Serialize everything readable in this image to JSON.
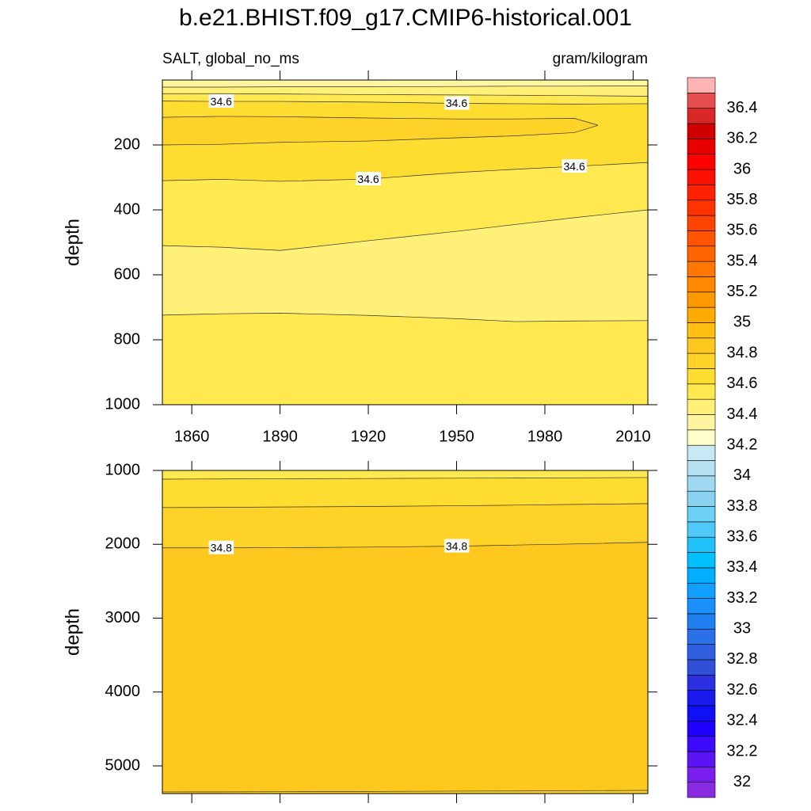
{
  "title": "b.e21.BHIST.f09_g17.CMIP6-historical.001",
  "left_string": "SALT, global_no_ms",
  "right_string": "gram/kilogram",
  "chart_data": [
    {
      "type": "contour",
      "ylabel": "depth",
      "xlim": [
        1850,
        2015
      ],
      "ylim": [
        0,
        1000
      ],
      "y_reversed": true,
      "xticks": [
        1860,
        1890,
        1920,
        1950,
        1980,
        2010
      ],
      "xtick_labels": true,
      "yticks": [
        200,
        400,
        600,
        800,
        1000
      ],
      "top_fill": 34.3,
      "contours": [
        {
          "level": 34.4,
          "below": 34.4,
          "x": [
            1850,
            1870,
            1890,
            1920,
            1950,
            1970,
            1990,
            2015
          ],
          "depth": [
            22,
            22,
            21,
            21,
            20,
            19,
            19,
            18
          ]
        },
        {
          "level": 34.5,
          "below": 34.5,
          "x": [
            1850,
            1870,
            1890,
            1920,
            1950,
            1970,
            1990,
            2015
          ],
          "depth": [
            42,
            42,
            43,
            45,
            46,
            47,
            48,
            50
          ]
        },
        {
          "level": 34.6,
          "below": 34.6,
          "x": [
            1850,
            1870,
            1890,
            1920,
            1950,
            1970,
            1990,
            2015
          ],
          "depth": [
            65,
            66,
            66,
            68,
            72,
            73,
            74,
            73
          ]
        },
        {
          "level": 34.7,
          "below": 34.7,
          "x": [
            1850,
            1870,
            1890,
            1920,
            1950,
            1970,
            1990,
            1998
          ],
          "depth": [
            115,
            112,
            113,
            117,
            120,
            120,
            118,
            139
          ]
        },
        {
          "level": 34.7,
          "below": 34.6,
          "x": [
            1850,
            1870,
            1890,
            1920,
            1950,
            1970,
            1990,
            1998
          ],
          "depth": [
            200,
            198,
            192,
            188,
            178,
            172,
            162,
            140
          ]
        },
        {
          "level": 34.6,
          "below": 34.5,
          "x": [
            1850,
            1870,
            1890,
            1920,
            1950,
            1970,
            1990,
            2015
          ],
          "depth": [
            310,
            306,
            312,
            305,
            285,
            275,
            266,
            254
          ]
        },
        {
          "level": 34.5,
          "below": 34.4,
          "x": [
            1850,
            1870,
            1890,
            1920,
            1950,
            1970,
            1990,
            2015
          ],
          "depth": [
            510,
            515,
            525,
            495,
            466,
            445,
            424,
            400
          ]
        },
        {
          "level": 34.5,
          "below": 34.5,
          "x": [
            1850,
            1870,
            1890,
            1920,
            1950,
            1970,
            1990,
            2015
          ],
          "depth": [
            724,
            720,
            718,
            725,
            735,
            744,
            742,
            741
          ]
        }
      ]
    },
    {
      "type": "contour",
      "ylabel": "depth",
      "xlim": [
        1850,
        2015
      ],
      "ylim": [
        1000,
        5375
      ],
      "y_reversed": true,
      "xticks": [
        1860,
        1890,
        1920,
        1950,
        1980,
        2010
      ],
      "xtick_labels": false,
      "yticks": [
        1000,
        2000,
        3000,
        4000,
        5000
      ],
      "top_fill": 34.5,
      "contours": [
        {
          "level": 34.6,
          "below": 34.6,
          "x": [
            1850,
            1870,
            1890,
            1920,
            1950,
            1970,
            1990,
            2015
          ],
          "depth": [
            1118,
            1115,
            1112,
            1109,
            1105,
            1102,
            1100,
            1096
          ]
        },
        {
          "level": 34.7,
          "below": 34.7,
          "x": [
            1850,
            1870,
            1890,
            1920,
            1950,
            1970,
            1990,
            2015
          ],
          "depth": [
            1503,
            1500,
            1495,
            1488,
            1478,
            1470,
            1460,
            1449
          ]
        },
        {
          "level": 34.8,
          "below": 34.8,
          "x": [
            1850,
            1870,
            1890,
            1920,
            1950,
            1970,
            1990,
            2015
          ],
          "depth": [
            2048,
            2048,
            2046,
            2038,
            2025,
            2010,
            1995,
            1973
          ]
        },
        {
          "level": 34.8,
          "below": 34.7,
          "x": [
            1850,
            1870,
            1890,
            1920,
            1950,
            1970,
            1990,
            2015
          ],
          "depth": [
            5353,
            5352,
            5350,
            5347,
            5342,
            5340,
            5336,
            5332
          ]
        }
      ]
    }
  ],
  "colorbar": {
    "levels": [
      32,
      32.1,
      32.2,
      32.3,
      32.4,
      32.5,
      32.6,
      32.7,
      32.8,
      32.9,
      33,
      33.1,
      33.2,
      33.3,
      33.4,
      33.5,
      33.6,
      33.7,
      33.8,
      33.9,
      34,
      34.1,
      34.2,
      34.3,
      34.4,
      34.5,
      34.6,
      34.7,
      34.8,
      34.9,
      35,
      35.1,
      35.2,
      35.3,
      35.4,
      35.5,
      35.6,
      35.7,
      35.8,
      35.9,
      36,
      36.1,
      36.2,
      36.3,
      36.4,
      36.5
    ],
    "colors": [
      "#8a2be2",
      "#7a1ef0",
      "#5a14f5",
      "#3c0cfa",
      "#2000ff",
      "#1010f5",
      "#1a1aee",
      "#2a30e0",
      "#3050d8",
      "#3060e0",
      "#2a70e8",
      "#2080f0",
      "#1a90f8",
      "#10a0ff",
      "#00b0ff",
      "#00c0ff",
      "#20c0f8",
      "#50c8f8",
      "#6ccff5",
      "#88d2f0",
      "#a0d8f0",
      "#b4e0f2",
      "#c8e8f4",
      "#ffffcc",
      "#fff5a0",
      "#fff078",
      "#ffe850",
      "#ffdc30",
      "#ffd228",
      "#ffc81e",
      "#ffbe14",
      "#ffaa00",
      "#ff9900",
      "#ff8800",
      "#ff7700",
      "#ff6600",
      "#ff5500",
      "#ff4400",
      "#ff3300",
      "#ff2200",
      "#ff1100",
      "#ff0000",
      "#e60000",
      "#d00000",
      "#d82828",
      "#e45050",
      "#ffb4b4"
    ],
    "ticks": [
      32,
      32.2,
      32.4,
      32.6,
      32.8,
      33,
      33.2,
      33.4,
      33.6,
      33.8,
      34,
      34.2,
      34.4,
      34.6,
      34.8,
      35,
      35.2,
      35.4,
      35.6,
      35.8,
      36,
      36.2,
      36.4
    ]
  }
}
